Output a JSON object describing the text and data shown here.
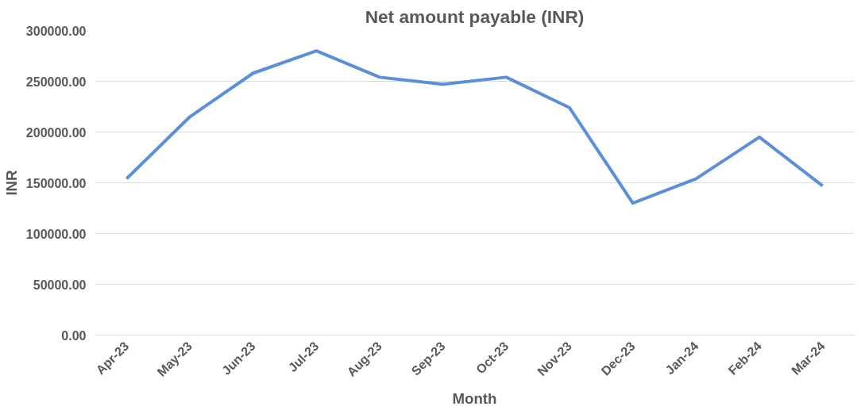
{
  "chart_data": {
    "type": "line",
    "title": "Net amount payable (INR)",
    "xlabel": "Month",
    "ylabel": "INR",
    "categories": [
      "Apr-23",
      "May-23",
      "Jun-23",
      "Jul-23",
      "Aug-23",
      "Sep-23",
      "Oct-23",
      "Nov-23",
      "Dec-23",
      "Jan-24",
      "Feb-24",
      "Mar-24"
    ],
    "series": [
      {
        "color": "#5b8fd9",
        "values": [
          154000,
          215000,
          258000,
          280000,
          254000,
          247000,
          254000,
          224000,
          130000,
          154000,
          195000,
          147000
        ]
      }
    ],
    "ylim": [
      0,
      300000
    ],
    "yticks": [
      {
        "value": 0,
        "label": "0.00"
      },
      {
        "value": 50000,
        "label": "50000.00"
      },
      {
        "value": 100000,
        "label": "100000.00"
      },
      {
        "value": 150000,
        "label": "150000.00"
      },
      {
        "value": 200000,
        "label": "200000.00"
      },
      {
        "value": 250000,
        "label": "250000.00"
      },
      {
        "value": 300000,
        "label": "300000.00"
      }
    ],
    "grid": "y",
    "marker": "none",
    "line_style": "solid"
  }
}
